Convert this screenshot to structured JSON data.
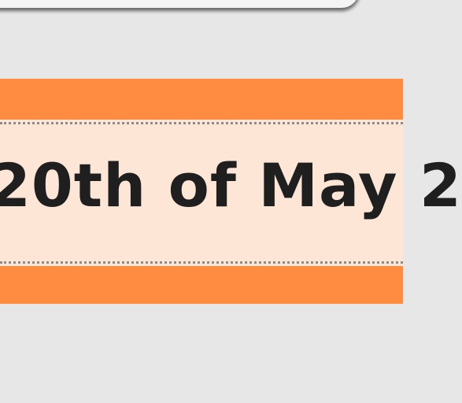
{
  "banner": {
    "date_text": "20th of May 2"
  },
  "colors": {
    "background": "#e7e7e7",
    "banner_orange": "#ff8c40",
    "banner_cream": "#fde6d6",
    "text": "#1f1f1f"
  }
}
